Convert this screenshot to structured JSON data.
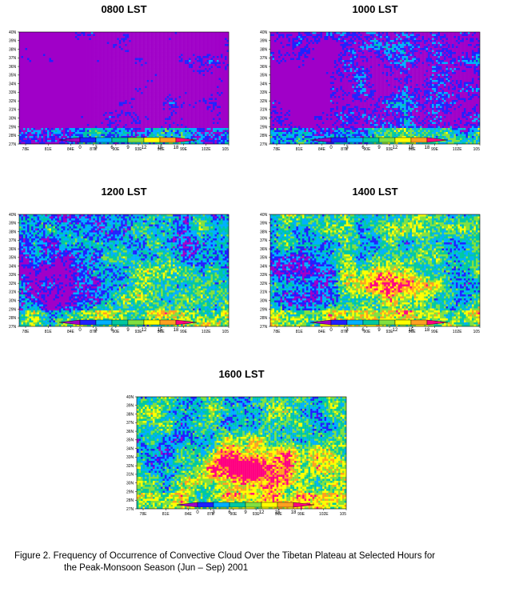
{
  "panels": [
    {
      "title": "0800 LST",
      "seed": 11,
      "bias": -0.55,
      "hot": 0.0
    },
    {
      "title": "1000 LST",
      "seed": 23,
      "bias": -0.35,
      "hot": 0.05
    },
    {
      "title": "1200 LST",
      "seed": 37,
      "bias": -0.05,
      "hot": 0.2
    },
    {
      "title": "1400 LST",
      "seed": 51,
      "bias": 0.05,
      "hot": 0.55
    },
    {
      "title": "1600 LST",
      "seed": 67,
      "bias": 0.12,
      "hot": 0.85
    }
  ],
  "lat_labels": [
    "40N",
    "39N",
    "38N",
    "37N",
    "36N",
    "35N",
    "34N",
    "33N",
    "32N",
    "31N",
    "30N",
    "29N",
    "28N",
    "27N"
  ],
  "lon_labels": [
    "78E",
    "81E",
    "84E",
    "87E",
    "90E",
    "93E",
    "96E",
    "99E",
    "102E",
    "105"
  ],
  "colorbar": {
    "ticks": [
      "0",
      "3",
      "6",
      "9",
      "12",
      "15",
      "18"
    ],
    "colors": [
      "#a000c8",
      "#2020ff",
      "#00b0ff",
      "#00c8a0",
      "#80e040",
      "#ffff00",
      "#ffa020",
      "#ff0080"
    ]
  },
  "caption": {
    "line1": "Figure 2.  Frequency of Occurrence of Convective Cloud Over the Tibetan Plateau at Selected Hours for",
    "line2": "the Peak-Monsoon Season (Jun – Sep) 2001"
  }
}
